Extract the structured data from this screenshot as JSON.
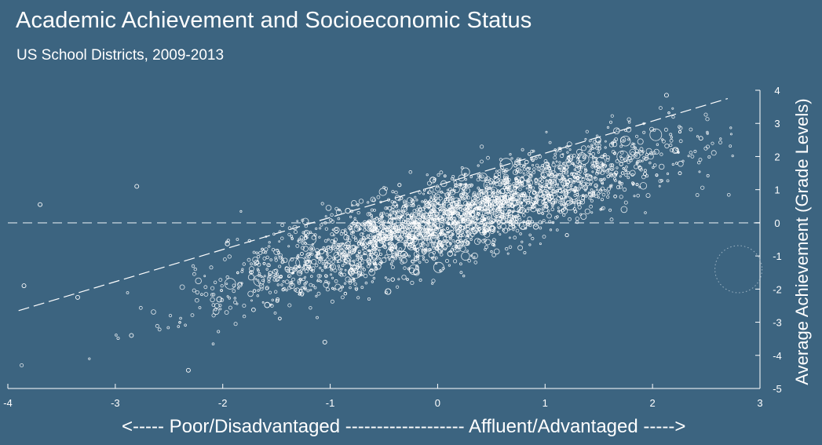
{
  "chart_data": {
    "type": "scatter",
    "title": "Academic Achievement and Socioeconomic Status",
    "subtitle": "US School Districts, 2009-2013",
    "xlabel": "<----- Poor/Disadvantaged ------------------- Affluent/Advantaged ----->",
    "ylabel": "Average Achievement (Grade Levels)",
    "xlim": [
      -4,
      3
    ],
    "ylim": [
      -5,
      4
    ],
    "x_ticks": [
      "-4",
      "-3",
      "-2",
      "-1",
      "0",
      "1",
      "2",
      "3"
    ],
    "y_ticks": [
      "4",
      "3",
      "2",
      "1",
      "0",
      "-1",
      "-2",
      "-3",
      "-4",
      "-5"
    ],
    "reference_line_y": 0,
    "trend_line": {
      "x": [
        -3.9,
        2.7
      ],
      "y": [
        -2.65,
        3.75
      ]
    },
    "legend_circle": {
      "x": 2.8,
      "y": -1.4
    },
    "points_summary": {
      "approx_count": 3000,
      "relationship": "positive linear, slope ~0.98",
      "residual_sd": 0.6
    },
    "sample_points": [
      {
        "x": 2.13,
        "y": 3.85
      },
      {
        "x": -3.35,
        "y": -2.25
      },
      {
        "x": -1.05,
        "y": -3.6
      },
      {
        "x": -2.8,
        "y": 1.1
      },
      {
        "x": -3.7,
        "y": 0.55
      },
      {
        "x": -2.32,
        "y": -4.45
      },
      {
        "x": -2.85,
        "y": -3.4
      },
      {
        "x": -3.85,
        "y": -1.9
      },
      {
        "x": 2.45,
        "y": 2.55
      },
      {
        "x": 1.65,
        "y": 1.45
      },
      {
        "x": 0.5,
        "y": 0.35
      },
      {
        "x": -0.5,
        "y": -0.5
      }
    ],
    "grid": false,
    "colors": {
      "background": "#3c6480",
      "points": "#ffffff",
      "zero_line": "#a9bcc9"
    }
  }
}
